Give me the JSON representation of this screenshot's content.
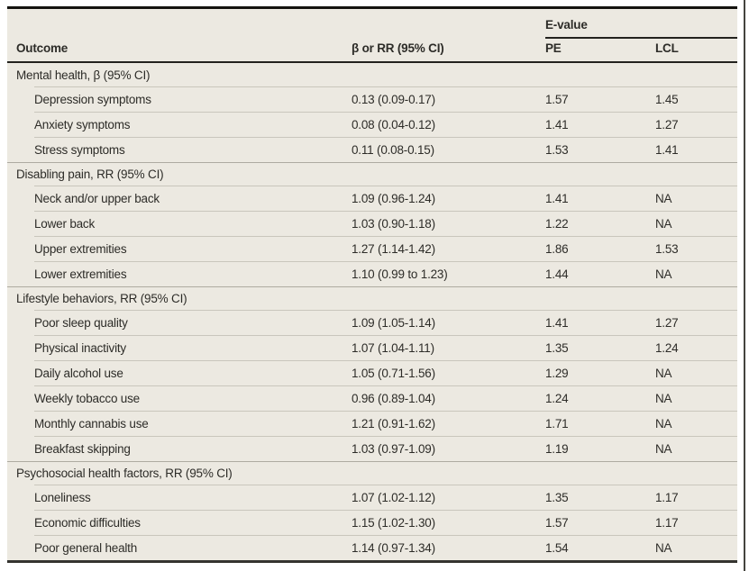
{
  "table": {
    "evalue_group_label": "E-value",
    "columns": [
      "Outcome",
      "β or RR (95% CI)",
      "PE",
      "LCL"
    ],
    "sections": [
      {
        "label": "Mental health, β (95% CI)",
        "rows": [
          {
            "outcome": "Depression symptoms",
            "estimate": "0.13 (0.09-0.17)",
            "pe": "1.57",
            "lcl": "1.45"
          },
          {
            "outcome": "Anxiety symptoms",
            "estimate": "0.08 (0.04-0.12)",
            "pe": "1.41",
            "lcl": "1.27"
          },
          {
            "outcome": "Stress symptoms",
            "estimate": "0.11 (0.08-0.15)",
            "pe": "1.53",
            "lcl": "1.41"
          }
        ]
      },
      {
        "label": "Disabling pain, RR (95% CI)",
        "rows": [
          {
            "outcome": "Neck and/or upper back",
            "estimate": "1.09 (0.96-1.24)",
            "pe": "1.41",
            "lcl": "NA"
          },
          {
            "outcome": "Lower back",
            "estimate": "1.03 (0.90-1.18)",
            "pe": "1.22",
            "lcl": "NA"
          },
          {
            "outcome": "Upper extremities",
            "estimate": "1.27 (1.14-1.42)",
            "pe": "1.86",
            "lcl": "1.53"
          },
          {
            "outcome": "Lower extremities",
            "estimate": "1.10 (0.99 to 1.23)",
            "pe": "1.44",
            "lcl": "NA"
          }
        ]
      },
      {
        "label": "Lifestyle behaviors, RR (95% CI)",
        "rows": [
          {
            "outcome": "Poor sleep quality",
            "estimate": "1.09 (1.05-1.14)",
            "pe": "1.41",
            "lcl": "1.27"
          },
          {
            "outcome": "Physical inactivity",
            "estimate": "1.07 (1.04-1.11)",
            "pe": "1.35",
            "lcl": "1.24"
          },
          {
            "outcome": "Daily alcohol use",
            "estimate": "1.05 (0.71-1.56)",
            "pe": "1.29",
            "lcl": "NA"
          },
          {
            "outcome": "Weekly tobacco use",
            "estimate": "0.96 (0.89-1.04)",
            "pe": "1.24",
            "lcl": "NA"
          },
          {
            "outcome": "Monthly cannabis use",
            "estimate": "1.21 (0.91-1.62)",
            "pe": "1.71",
            "lcl": "NA"
          },
          {
            "outcome": "Breakfast skipping",
            "estimate": "1.03 (0.97-1.09)",
            "pe": "1.19",
            "lcl": "NA"
          }
        ]
      },
      {
        "label": "Psychosocial health factors, RR (95% CI)",
        "rows": [
          {
            "outcome": "Loneliness",
            "estimate": "1.07 (1.02-1.12)",
            "pe": "1.35",
            "lcl": "1.17"
          },
          {
            "outcome": "Economic difficulties",
            "estimate": "1.15 (1.02-1.30)",
            "pe": "1.57",
            "lcl": "1.17"
          },
          {
            "outcome": "Poor general health",
            "estimate": "1.14 (0.97-1.34)",
            "pe": "1.54",
            "lcl": "NA"
          }
        ]
      }
    ],
    "colors": {
      "table_background": "#ece9e1",
      "top_border": "#14130f",
      "bottom_border": "#35342f",
      "header_rule": "#23221e",
      "section_rule": "#aeaba1",
      "row_rule": "#c9c6bc",
      "text": "#2d2c28"
    }
  }
}
